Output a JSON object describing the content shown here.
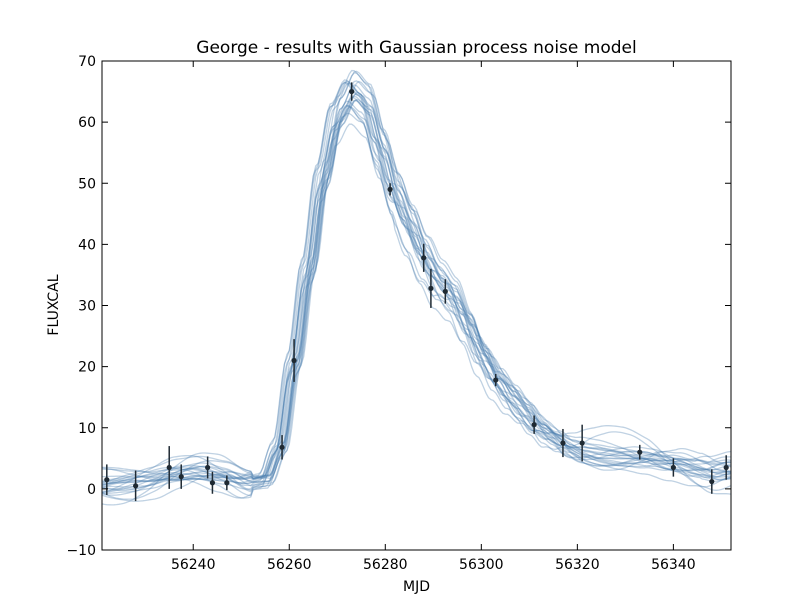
{
  "chart_data": {
    "type": "line",
    "title": "George - results with Gaussian process noise model",
    "xlabel": "MJD",
    "ylabel": "FLUXCAL",
    "xlim": [
      56221,
      56352
    ],
    "ylim": [
      -10,
      70
    ],
    "xticks": [
      56240,
      56260,
      56280,
      56300,
      56320,
      56340
    ],
    "yticks": [
      -10,
      0,
      10,
      20,
      30,
      40,
      50,
      60,
      70
    ],
    "grid": false,
    "legend": "none",
    "colors": {
      "samples": "#4a7fb0",
      "points": "#1f2a33",
      "axes": "#000000"
    },
    "observations": [
      {
        "x": 56222,
        "y": 1.5,
        "err": 2.5
      },
      {
        "x": 56228,
        "y": 0.5,
        "err": 2.5
      },
      {
        "x": 56235,
        "y": 3.5,
        "err": 3.5
      },
      {
        "x": 56237.5,
        "y": 2.0,
        "err": 2.0
      },
      {
        "x": 56243,
        "y": 3.5,
        "err": 1.8
      },
      {
        "x": 56244,
        "y": 1.0,
        "err": 1.8
      },
      {
        "x": 56247,
        "y": 1.0,
        "err": 1.2
      },
      {
        "x": 56258.5,
        "y": 6.8,
        "err": 2.0
      },
      {
        "x": 56261,
        "y": 21.0,
        "err": 3.5
      },
      {
        "x": 56273,
        "y": 65.0,
        "err": 1.5
      },
      {
        "x": 56281,
        "y": 49.0,
        "err": 1.0
      },
      {
        "x": 56288,
        "y": 37.8,
        "err": 2.3
      },
      {
        "x": 56289.5,
        "y": 32.8,
        "err": 3.2
      },
      {
        "x": 56292.5,
        "y": 32.3,
        "err": 2.0
      },
      {
        "x": 56303,
        "y": 17.8,
        "err": 1.0
      },
      {
        "x": 56311,
        "y": 10.5,
        "err": 1.5
      },
      {
        "x": 56317,
        "y": 7.5,
        "err": 2.3
      },
      {
        "x": 56321,
        "y": 7.5,
        "err": 3.0
      },
      {
        "x": 56333,
        "y": 6.0,
        "err": 1.2
      },
      {
        "x": 56340,
        "y": 3.5,
        "err": 1.5
      },
      {
        "x": 56348,
        "y": 1.2,
        "err": 2.0
      },
      {
        "x": 56351,
        "y": 3.5,
        "err": 2.0
      }
    ],
    "mean_curve": {
      "x": [
        56221,
        56226,
        56231,
        56236,
        56241,
        56246,
        56251,
        56255,
        56258,
        56261,
        56264,
        56267,
        56270,
        56273,
        56276,
        56279,
        56282,
        56285,
        56288,
        56291,
        56294,
        56297,
        56300,
        56303,
        56306,
        56309,
        56312,
        56315,
        56318,
        56321,
        56325,
        56330,
        56335,
        56340,
        56345,
        56348,
        56352
      ],
      "y": [
        1.0,
        1.2,
        1.5,
        2.2,
        2.5,
        2.0,
        1.0,
        1.5,
        6.5,
        20.0,
        35.0,
        50.0,
        60.0,
        64.0,
        62.0,
        55.0,
        48.0,
        43.0,
        38.0,
        34.0,
        31.5,
        27.0,
        22.0,
        18.0,
        15.0,
        12.5,
        10.0,
        8.5,
        7.0,
        6.2,
        5.8,
        5.5,
        5.0,
        4.0,
        3.0,
        2.5,
        3.0
      ]
    },
    "sample_count": 24
  }
}
